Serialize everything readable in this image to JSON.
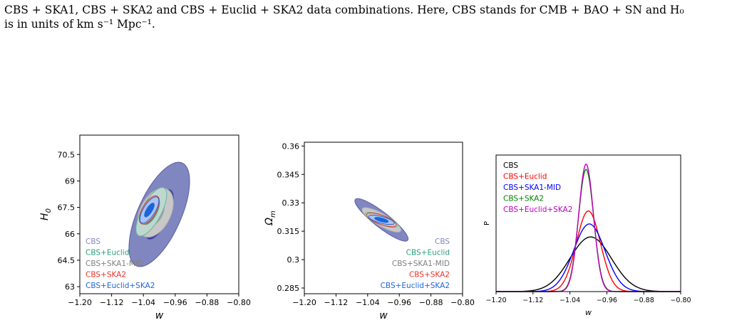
{
  "caption": {
    "line1": "CBS + SKA1, CBS + SKA2 and CBS + Euclid + SKA2 data combinations. Here, CBS stands for CMB + BAO + SN and H₀",
    "line2": "is in units of km s⁻¹ Mpc⁻¹."
  },
  "colors": {
    "cbs": "#8086c0",
    "euclid": "#2a9d7a",
    "ska1": "#808080",
    "ska2": "#e8322a",
    "euclid_ska2": "#1e64d8"
  },
  "chart_data": [
    {
      "type": "contour",
      "xlabel": "w",
      "ylabel": "H_0",
      "xlim": [
        -1.2,
        -0.8
      ],
      "ylim": [
        62.6,
        71.6
      ],
      "xticks": [
        "-1.20",
        "-1.12",
        "-1.04",
        "-0.96",
        "-0.88",
        "-0.80"
      ],
      "yticks": [
        "63",
        "64.5",
        "66",
        "67.5",
        "69",
        "70.5"
      ],
      "legend_position": "lower-left",
      "legend": [
        "CBS",
        "CBS+Euclid",
        "CBS+SKA1-MID",
        "CBS+SKA2",
        "CBS+Euclid+SKA2"
      ],
      "series": [
        {
          "name": "CBS",
          "center": [
            -1.0,
            67.1
          ],
          "angle_deg": -66,
          "sigma1": [
            1.7,
            0.28
          ],
          "sigma2": [
            3.55,
            0.62
          ]
        },
        {
          "name": "CBS+SKA1-MID",
          "center": [
            -1.01,
            67.2
          ],
          "angle_deg": -64,
          "sigma1": [
            0.85,
            0.22
          ],
          "sigma2": [
            1.65,
            0.44
          ]
        },
        {
          "name": "CBS+Euclid",
          "center": [
            -1.02,
            67.25
          ],
          "angle_deg": -62,
          "sigma1": [
            0.9,
            0.16
          ],
          "sigma2": [
            1.7,
            0.28
          ]
        },
        {
          "name": "CBS+SKA2",
          "center": [
            -1.025,
            67.35
          ],
          "angle_deg": -60,
          "sigma1": [
            0.55,
            0.12
          ],
          "sigma2": [
            1.0,
            0.2
          ]
        },
        {
          "name": "CBS+Euclid+SKA2",
          "center": [
            -1.025,
            67.35
          ],
          "angle_deg": -58,
          "sigma1": [
            0.5,
            0.08
          ],
          "sigma2": [
            0.95,
            0.17
          ]
        }
      ]
    },
    {
      "type": "contour",
      "xlabel": "w",
      "ylabel": "Ω_m",
      "xlim": [
        -1.2,
        -0.8
      ],
      "ylim": [
        0.282,
        0.362
      ],
      "xticks": [
        "-1.20",
        "-1.12",
        "-1.04",
        "-0.96",
        "-0.88",
        "-0.80"
      ],
      "yticks": [
        "0.285",
        "0.3",
        "0.315",
        "0.33",
        "0.345",
        "0.36"
      ],
      "legend_position": "lower-right",
      "legend": [
        "CBS",
        "CBS+Euclid",
        "CBS+SKA1-MID",
        "CBS+SKA2",
        "CBS+Euclid+SKA2"
      ],
      "series": [
        {
          "name": "CBS",
          "center": [
            -1.005,
            0.321
          ],
          "angle_deg": 38,
          "sigma1": [
            0.6,
            0.25
          ],
          "sigma2": [
            1.05,
            0.5
          ]
        },
        {
          "name": "CBS+SKA1-MID",
          "center": [
            -1.005,
            0.321
          ],
          "angle_deg": 30,
          "sigma1": [
            0.4,
            0.22
          ],
          "sigma2": [
            0.7,
            0.4
          ]
        },
        {
          "name": "CBS+Euclid",
          "center": [
            -1.005,
            0.321
          ],
          "angle_deg": 20,
          "sigma1": [
            0.32,
            0.2
          ],
          "sigma2": [
            0.55,
            0.32
          ]
        },
        {
          "name": "CBS+SKA2",
          "center": [
            -1.005,
            0.321
          ],
          "angle_deg": 20,
          "sigma1": [
            0.3,
            0.18
          ],
          "sigma2": [
            0.5,
            0.3
          ]
        },
        {
          "name": "CBS+Euclid+SKA2",
          "center": [
            -1.005,
            0.321
          ],
          "angle_deg": 15,
          "sigma1": [
            0.22,
            0.12
          ],
          "sigma2": [
            0.42,
            0.22
          ]
        }
      ]
    },
    {
      "type": "line",
      "xlabel": "w",
      "ylabel": "P",
      "xlim": [
        -1.2,
        -0.8
      ],
      "ylim": [
        0,
        1.05
      ],
      "xticks": [
        "-1.20",
        "-1.12",
        "-1.04",
        "-0.96",
        "-0.88",
        "-0.80"
      ],
      "legend_position": "top-left",
      "series": [
        {
          "name": "CBS",
          "color": "#000000",
          "mu": -0.995,
          "sigma": 0.045,
          "peak": 0.42
        },
        {
          "name": "CBS+Euclid",
          "color": "#ff0000",
          "mu": -1.0,
          "sigma": 0.026,
          "peak": 0.62
        },
        {
          "name": "CBS+SKA1-MID",
          "color": "#0000ff",
          "mu": -0.998,
          "sigma": 0.034,
          "peak": 0.52
        },
        {
          "name": "CBS+SKA2",
          "color": "#008000",
          "mu": -1.005,
          "sigma": 0.0165,
          "peak": 0.94
        },
        {
          "name": "CBS+Euclid+SKA2",
          "color": "#c000c0",
          "mu": -1.005,
          "sigma": 0.016,
          "peak": 0.98
        }
      ]
    }
  ]
}
